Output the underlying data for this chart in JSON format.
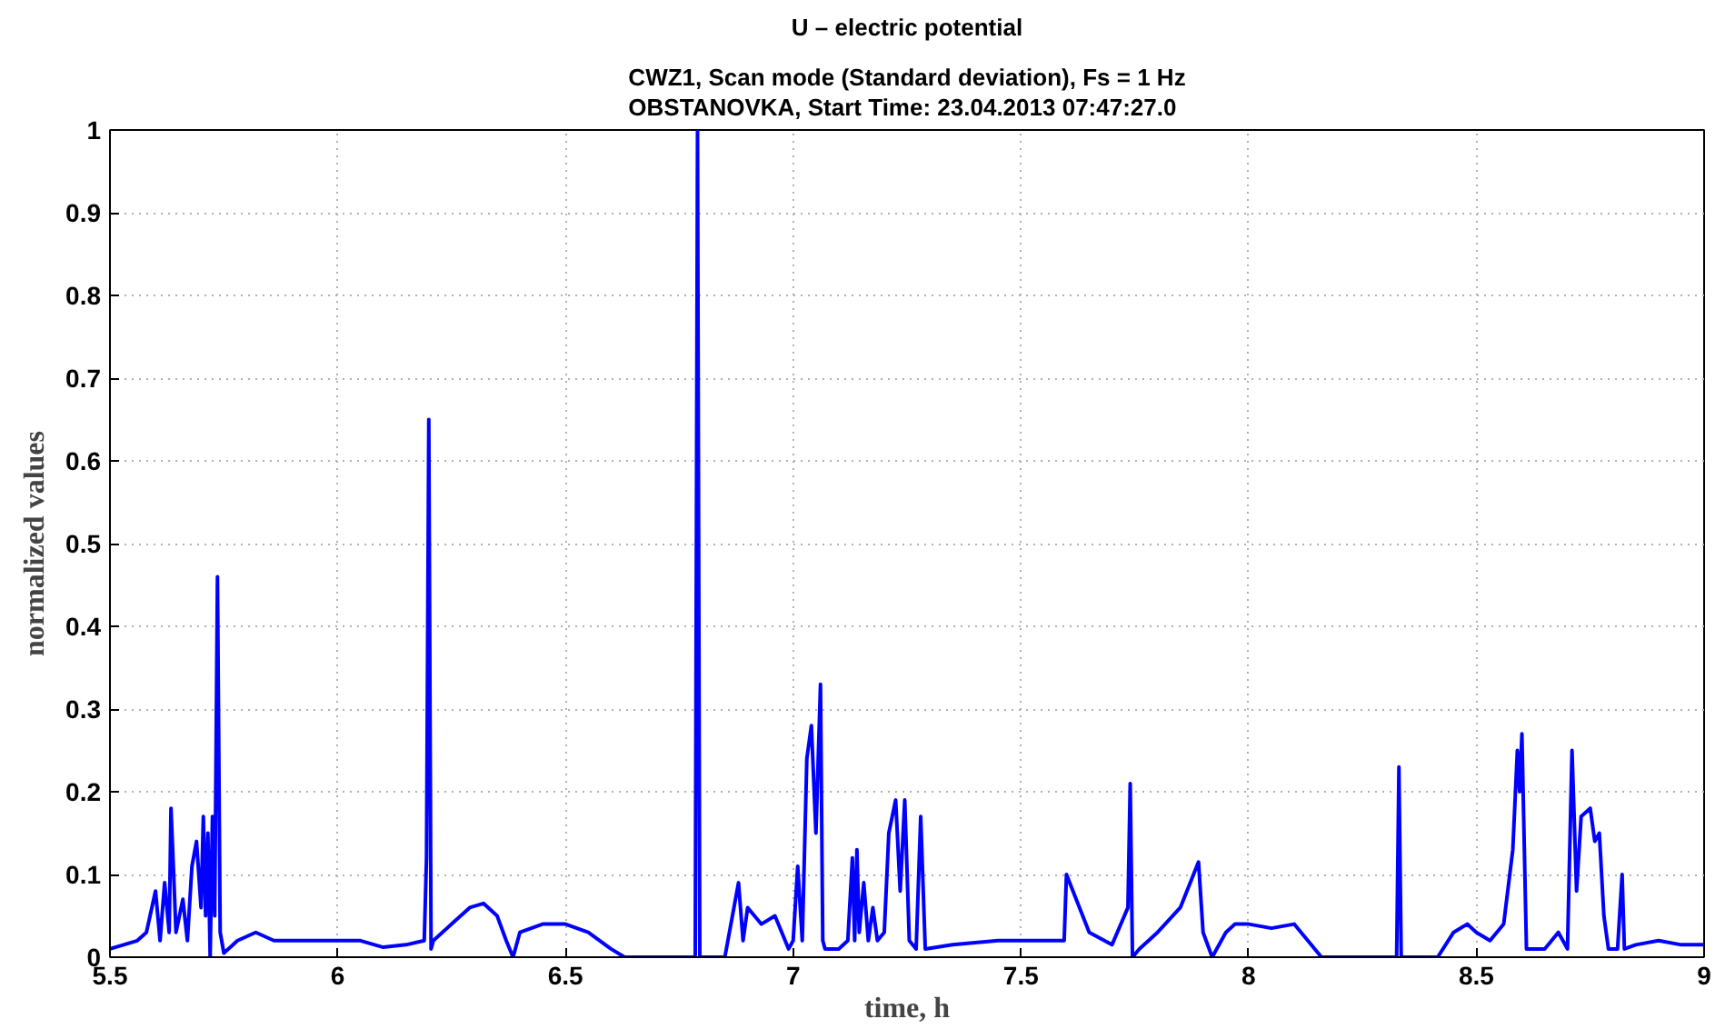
{
  "chart_data": {
    "type": "line",
    "title": "U – electric potential",
    "subtitle": "CWZ1, Scan mode (Standard deviation), Fs = 1 Hz\nOBSTANOVKA, Start Time: 23.04.2013 07:47:27.0",
    "xlabel": "time, h",
    "ylabel": "normalized values",
    "xlim": [
      5.5,
      9
    ],
    "ylim": [
      0,
      1
    ],
    "xticks": [
      5.5,
      6,
      6.5,
      7,
      7.5,
      8,
      8.5,
      9
    ],
    "yticks": [
      0,
      0.1,
      0.2,
      0.3,
      0.4,
      0.5,
      0.6,
      0.7,
      0.8,
      0.9,
      1
    ],
    "grid": true,
    "marker": "none",
    "line_style": "solid",
    "series": [
      {
        "color": "#0000ff",
        "x": [
          5.5,
          5.53,
          5.56,
          5.58,
          5.6,
          5.61,
          5.62,
          5.63,
          5.634,
          5.645,
          5.66,
          5.67,
          5.68,
          5.69,
          5.7,
          5.705,
          5.71,
          5.715,
          5.72,
          5.725,
          5.73,
          5.736,
          5.742,
          5.75,
          5.78,
          5.82,
          5.86,
          5.9,
          5.95,
          6.0,
          6.05,
          6.1,
          6.15,
          6.19,
          6.195,
          6.2,
          6.205,
          6.21,
          6.25,
          6.29,
          6.32,
          6.35,
          6.37,
          6.385,
          6.4,
          6.45,
          6.5,
          6.55,
          6.6,
          6.63,
          6.7,
          6.785,
          6.79,
          6.795,
          6.85,
          6.86,
          6.88,
          6.89,
          6.9,
          6.93,
          6.96,
          6.99,
          7.0,
          7.01,
          7.02,
          7.03,
          7.04,
          7.05,
          7.06,
          7.065,
          7.07,
          7.1,
          7.12,
          7.13,
          7.135,
          7.14,
          7.145,
          7.155,
          7.165,
          7.175,
          7.185,
          7.2,
          7.21,
          7.225,
          7.235,
          7.245,
          7.255,
          7.27,
          7.28,
          7.29,
          7.35,
          7.45,
          7.55,
          7.595,
          7.6,
          7.65,
          7.7,
          7.735,
          7.74,
          7.745,
          7.76,
          7.8,
          7.85,
          7.89,
          7.9,
          7.92,
          7.95,
          7.97,
          8.0,
          8.05,
          8.1,
          8.13,
          8.16,
          8.25,
          8.325,
          8.33,
          8.335,
          8.415,
          8.45,
          8.48,
          8.5,
          8.53,
          8.56,
          8.58,
          8.59,
          8.595,
          8.6,
          8.61,
          8.65,
          8.68,
          8.7,
          8.71,
          8.72,
          8.73,
          8.75,
          8.76,
          8.77,
          8.78,
          8.79,
          8.81,
          8.82,
          8.825,
          8.85,
          8.9,
          8.95,
          9.0
        ],
        "values": [
          0.01,
          0.015,
          0.02,
          0.03,
          0.08,
          0.02,
          0.09,
          0.03,
          0.18,
          0.03,
          0.07,
          0.02,
          0.11,
          0.14,
          0.06,
          0.17,
          0.05,
          0.15,
          0.0,
          0.17,
          0.05,
          0.46,
          0.03,
          0.005,
          0.02,
          0.03,
          0.02,
          0.02,
          0.02,
          0.02,
          0.02,
          0.012,
          0.015,
          0.02,
          0.12,
          0.65,
          0.01,
          0.02,
          0.04,
          0.06,
          0.065,
          0.05,
          0.02,
          0.0,
          0.03,
          0.04,
          0.04,
          0.03,
          0.01,
          0.0,
          0.0,
          0.0,
          1.0,
          0.0,
          0.0,
          0.03,
          0.09,
          0.02,
          0.06,
          0.04,
          0.05,
          0.01,
          0.02,
          0.11,
          0.02,
          0.24,
          0.28,
          0.15,
          0.33,
          0.02,
          0.01,
          0.01,
          0.02,
          0.12,
          0.02,
          0.13,
          0.03,
          0.09,
          0.02,
          0.06,
          0.02,
          0.03,
          0.15,
          0.19,
          0.08,
          0.19,
          0.02,
          0.01,
          0.17,
          0.01,
          0.015,
          0.02,
          0.02,
          0.02,
          0.1,
          0.03,
          0.015,
          0.06,
          0.21,
          0.0,
          0.01,
          0.03,
          0.06,
          0.115,
          0.03,
          0.0,
          0.03,
          0.04,
          0.04,
          0.035,
          0.04,
          0.02,
          0.0,
          0.0,
          0.0,
          0.23,
          0.0,
          0.0,
          0.03,
          0.04,
          0.03,
          0.02,
          0.04,
          0.13,
          0.25,
          0.2,
          0.27,
          0.01,
          0.01,
          0.03,
          0.01,
          0.25,
          0.08,
          0.17,
          0.18,
          0.14,
          0.15,
          0.05,
          0.01,
          0.01,
          0.1,
          0.01,
          0.015,
          0.02,
          0.015,
          0.015
        ]
      }
    ]
  }
}
